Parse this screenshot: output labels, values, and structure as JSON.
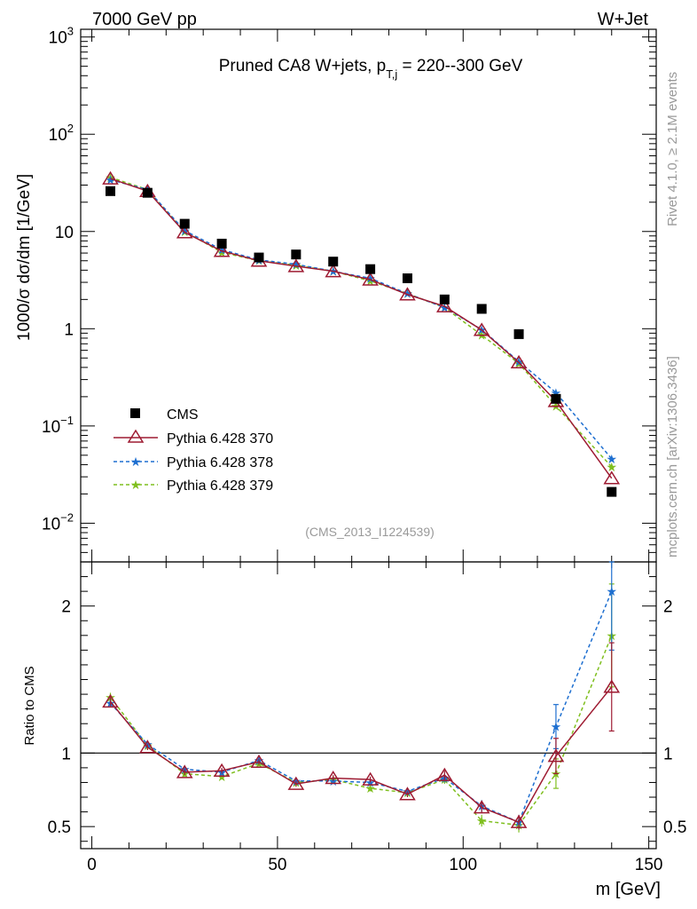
{
  "header": {
    "left": "7000 GeV pp",
    "right": "W+Jet"
  },
  "side": {
    "rivet": "Rivet 4.1.0, ≥ 2.1M events",
    "mcplots": "mcplots.cern.ch [arXiv:1306.3436]"
  },
  "analysis_id": "(CMS_2013_I1224539)",
  "colors": {
    "cms": "#000000",
    "p370": "#9e1b32",
    "p378": "#1e6fd0",
    "p379": "#7fbf1f"
  },
  "chart_data": [
    {
      "type": "scatter",
      "scale": "log",
      "title": "Pruned CA8 W+jets, p",
      "title_sub": "T,j",
      "title_rest": " = 220--300 GeV",
      "ylabel": "1000/σ  dσ/dm [1/GeV]",
      "ylim": [
        0.004,
        1200
      ],
      "yticks": [
        {
          "value": 0.01,
          "base": "10",
          "exp": "−2"
        },
        {
          "value": 0.1,
          "base": "10",
          "exp": "−1"
        },
        {
          "value": 1,
          "base": "1",
          "exp": ""
        },
        {
          "value": 10,
          "base": "10",
          "exp": ""
        },
        {
          "value": 100,
          "base": "10",
          "exp": "2"
        },
        {
          "value": 1000,
          "base": "10",
          "exp": "3"
        }
      ],
      "x": [
        5,
        15,
        25,
        35,
        45,
        55,
        65,
        75,
        85,
        95,
        105,
        115,
        125,
        140
      ],
      "series": [
        {
          "name": "CMS",
          "key": "cms",
          "values": [
            26,
            25,
            12,
            7.5,
            5.4,
            5.8,
            4.9,
            4.1,
            3.3,
            2.0,
            1.6,
            0.88,
            0.19,
            0.021
          ]
        },
        {
          "name": "Pythia 6.428 370",
          "key": "p370",
          "values": [
            35,
            26,
            9.8,
            6.3,
            5.0,
            4.4,
            3.9,
            3.2,
            2.25,
            1.7,
            0.97,
            0.45,
            0.18,
            0.029
          ]
        },
        {
          "name": "Pythia 6.428 378",
          "key": "p378",
          "values": [
            34,
            27,
            10.2,
            6.5,
            5.1,
            4.6,
            3.9,
            3.3,
            2.3,
            1.65,
            0.98,
            0.46,
            0.22,
            0.046
          ]
        },
        {
          "name": "Pythia 6.428 379",
          "key": "p379",
          "values": [
            36,
            27,
            10.0,
            6.1,
            5.0,
            4.5,
            3.9,
            3.1,
            2.3,
            1.65,
            0.86,
            0.44,
            0.16,
            0.038
          ]
        }
      ]
    },
    {
      "type": "line",
      "ylabel": "Ratio to CMS",
      "xlabel": "m [GeV]",
      "xlim": [
        -3,
        152
      ],
      "ylim": [
        0.35,
        2.3
      ],
      "xticks": [
        "0",
        "50",
        "100",
        "150"
      ],
      "xtick_values": [
        0,
        50,
        100,
        150
      ],
      "yticks": [
        "0.5",
        "1",
        "2"
      ],
      "ytick_values": [
        0.5,
        1,
        2
      ],
      "x": [
        5,
        15,
        25,
        35,
        45,
        55,
        65,
        75,
        85,
        95,
        105,
        115,
        125,
        140
      ],
      "series": [
        {
          "name": "Pythia 6.428 370",
          "key": "p370",
          "values": [
            1.35,
            1.04,
            0.87,
            0.88,
            0.94,
            0.79,
            0.83,
            0.82,
            0.72,
            0.85,
            0.63,
            0.53,
            0.98,
            1.45
          ],
          "err": [
            0.03,
            0.02,
            0.02,
            0.02,
            0.02,
            0.02,
            0.02,
            0.02,
            0.02,
            0.03,
            0.04,
            0.05,
            0.12,
            0.3
          ]
        },
        {
          "name": "Pythia 6.428 378",
          "key": "p378",
          "values": [
            1.34,
            1.06,
            0.89,
            0.87,
            0.95,
            0.81,
            0.81,
            0.8,
            0.74,
            0.83,
            0.64,
            0.53,
            1.18,
            2.1
          ],
          "err": [
            0.03,
            0.02,
            0.02,
            0.02,
            0.02,
            0.02,
            0.02,
            0.02,
            0.02,
            0.03,
            0.04,
            0.05,
            0.15,
            0.4
          ]
        },
        {
          "name": "Pythia 6.428 379",
          "key": "p379",
          "values": [
            1.38,
            1.05,
            0.86,
            0.84,
            0.93,
            0.8,
            0.82,
            0.76,
            0.73,
            0.82,
            0.54,
            0.51,
            0.86,
            1.8
          ],
          "err": [
            0.03,
            0.02,
            0.02,
            0.02,
            0.02,
            0.02,
            0.02,
            0.02,
            0.02,
            0.03,
            0.04,
            0.05,
            0.1,
            0.35
          ]
        }
      ]
    }
  ]
}
